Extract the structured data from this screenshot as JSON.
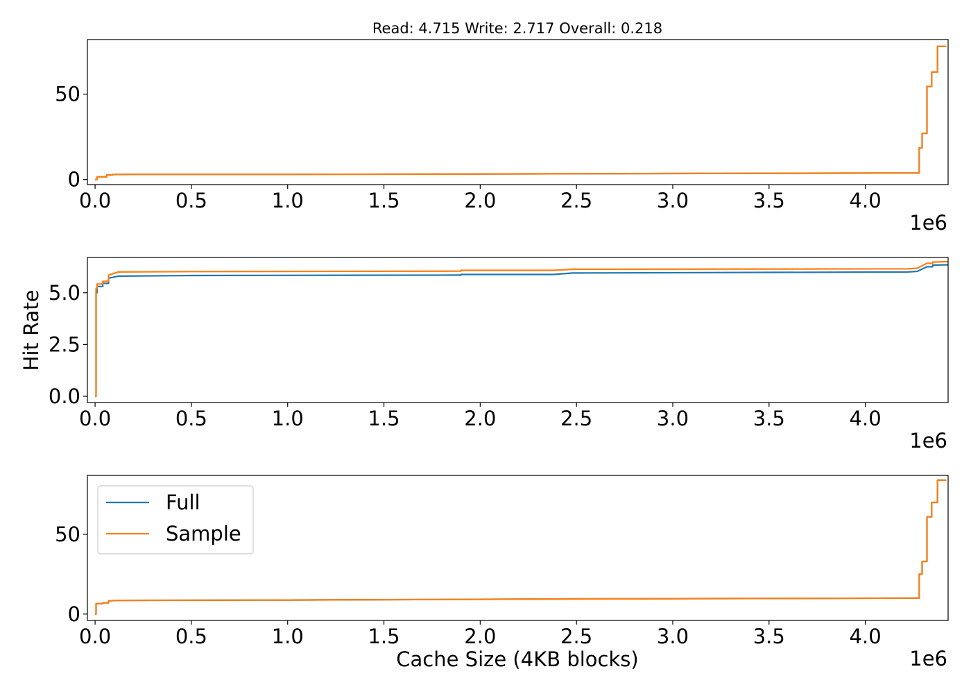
{
  "chart_data": [
    {
      "type": "line",
      "title": "Read: 4.715 Write: 2.717 Overall: 0.218",
      "xlabel": "",
      "ylabel": "",
      "xlim": [
        -40000,
        4430000
      ],
      "ylim": [
        -3,
        82
      ],
      "xticks": [
        0,
        500000,
        1000000,
        1500000,
        2000000,
        2500000,
        3000000,
        3500000,
        4000000
      ],
      "xtick_labels": [
        "0.0",
        "0.5",
        "1.0",
        "1.5",
        "2.0",
        "2.5",
        "3.0",
        "3.5",
        "4.0"
      ],
      "xoffset_label": "1e6",
      "yticks": [
        0,
        50
      ],
      "ytick_labels": [
        "0",
        "50"
      ],
      "series": [
        {
          "name": "Full",
          "color": "#1f77b4",
          "x": [
            0,
            10000,
            40000,
            60000,
            90000,
            200000,
            1000000,
            1890000,
            2470000,
            4270000,
            4280000,
            4295000,
            4320000,
            4345000,
            4375000,
            4420000
          ],
          "y": [
            0,
            1.5,
            1.5,
            2.6,
            2.9,
            3.0,
            3.0,
            3.2,
            3.4,
            3.8,
            18.5,
            27,
            54.5,
            63,
            78,
            78
          ]
        },
        {
          "name": "Sample",
          "color": "#ff7f0e",
          "x": [
            0,
            10000,
            40000,
            60000,
            90000,
            200000,
            1000000,
            1890000,
            2470000,
            4270000,
            4280000,
            4295000,
            4320000,
            4345000,
            4375000,
            4420000
          ],
          "y": [
            0,
            1.5,
            1.5,
            2.6,
            2.9,
            3.0,
            3.0,
            3.2,
            3.4,
            3.8,
            18.5,
            27,
            54.5,
            63,
            78,
            78
          ]
        }
      ],
      "grid": false,
      "legend": "none"
    },
    {
      "type": "line",
      "title": "",
      "xlabel": "",
      "ylabel": "Hit Rate",
      "xlim": [
        -40000,
        4430000
      ],
      "ylim": [
        -0.3,
        6.7
      ],
      "xticks": [
        0,
        500000,
        1000000,
        1500000,
        2000000,
        2500000,
        3000000,
        3500000,
        4000000
      ],
      "xtick_labels": [
        "0.0",
        "0.5",
        "1.0",
        "1.5",
        "2.0",
        "2.5",
        "3.0",
        "3.5",
        "4.0"
      ],
      "xoffset_label": "1e6",
      "yticks": [
        0,
        2.5,
        5.0
      ],
      "ytick_labels": [
        "0.0",
        "2.5",
        "5.0"
      ],
      "series": [
        {
          "name": "Full",
          "color": "#1f77b4",
          "x": [
            0,
            5000,
            10000,
            40000,
            70000,
            120000,
            500000,
            1880000,
            1900000,
            2380000,
            2480000,
            4220000,
            4270000,
            4320000,
            4350000,
            4430000
          ],
          "y": [
            0,
            5.0,
            5.3,
            5.45,
            5.7,
            5.8,
            5.83,
            5.85,
            5.88,
            5.88,
            5.95,
            6.0,
            6.03,
            6.25,
            6.33,
            6.35
          ]
        },
        {
          "name": "Sample",
          "color": "#ff7f0e",
          "x": [
            0,
            5000,
            10000,
            40000,
            70000,
            120000,
            500000,
            1880000,
            1900000,
            2380000,
            2480000,
            4220000,
            4270000,
            4320000,
            4350000,
            4430000
          ],
          "y": [
            0,
            5.2,
            5.42,
            5.55,
            5.85,
            6.0,
            6.02,
            6.04,
            6.08,
            6.08,
            6.13,
            6.15,
            6.18,
            6.42,
            6.48,
            6.5
          ]
        }
      ],
      "grid": false,
      "legend": "none"
    },
    {
      "type": "line",
      "title": "",
      "xlabel": "Cache Size (4KB blocks)",
      "ylabel": "",
      "xlim": [
        -40000,
        4430000
      ],
      "ylim": [
        -4,
        87
      ],
      "xticks": [
        0,
        500000,
        1000000,
        1500000,
        2000000,
        2500000,
        3000000,
        3500000,
        4000000
      ],
      "xtick_labels": [
        "0.0",
        "0.5",
        "1.0",
        "1.5",
        "2.0",
        "2.5",
        "3.0",
        "3.5",
        "4.0"
      ],
      "xoffset_label": "1e6",
      "yticks": [
        0,
        50
      ],
      "ytick_labels": [
        "0",
        "50"
      ],
      "series": [
        {
          "name": "Full",
          "color": "#1f77b4",
          "x": [
            0,
            5000,
            10000,
            40000,
            70000,
            120000,
            1000000,
            1890000,
            2470000,
            4270000,
            4280000,
            4295000,
            4320000,
            4345000,
            4375000,
            4420000
          ],
          "y": [
            0,
            6.5,
            6.5,
            7.0,
            8.3,
            8.6,
            8.8,
            9.2,
            9.5,
            10,
            25,
            33,
            61,
            70,
            84,
            84
          ]
        },
        {
          "name": "Sample",
          "color": "#ff7f0e",
          "x": [
            0,
            5000,
            10000,
            40000,
            70000,
            120000,
            1000000,
            1890000,
            2470000,
            4270000,
            4280000,
            4295000,
            4320000,
            4345000,
            4375000,
            4420000
          ],
          "y": [
            0,
            6.5,
            6.5,
            7.0,
            8.3,
            8.6,
            8.8,
            9.2,
            9.5,
            10,
            25,
            33,
            61,
            70,
            84,
            84
          ]
        }
      ],
      "grid": false,
      "legend": "upper left"
    }
  ]
}
